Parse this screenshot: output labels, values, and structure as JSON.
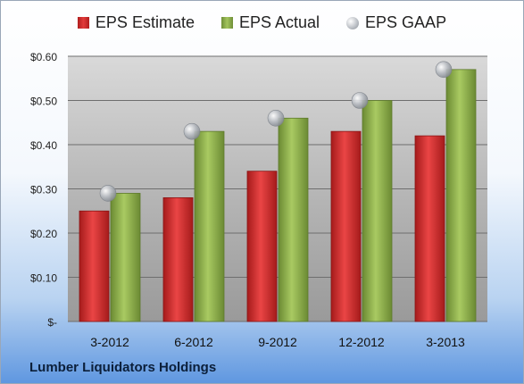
{
  "chart_data": {
    "type": "bar",
    "categories": [
      "3-2012",
      "6-2012",
      "9-2012",
      "12-2012",
      "3-2013"
    ],
    "series": [
      {
        "name": "EPS Estimate",
        "values": [
          0.25,
          0.28,
          0.34,
          0.43,
          0.42
        ],
        "color": "#d62f2f"
      },
      {
        "name": "EPS Actual",
        "values": [
          0.29,
          0.43,
          0.46,
          0.5,
          0.57
        ],
        "color": "#8fb04b"
      },
      {
        "name": "EPS GAAP",
        "values": [
          0.29,
          0.43,
          0.46,
          0.5,
          0.57
        ],
        "color": "#b8bcc2",
        "marker": "circle"
      }
    ],
    "yticks": [
      {
        "value": 0.0,
        "label": "$-"
      },
      {
        "value": 0.1,
        "label": "$0.10"
      },
      {
        "value": 0.2,
        "label": "$0.20"
      },
      {
        "value": 0.3,
        "label": "$0.30"
      },
      {
        "value": 0.4,
        "label": "$0.40"
      },
      {
        "value": 0.5,
        "label": "$0.50"
      },
      {
        "value": 0.6,
        "label": "$0.60"
      }
    ],
    "ylim": [
      0,
      0.6
    ],
    "grid": true,
    "legend_position": "top"
  },
  "footer": "Lumber Liquidators Holdings"
}
